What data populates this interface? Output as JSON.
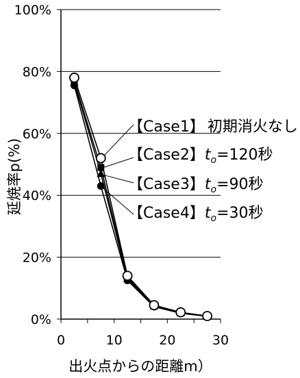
{
  "chart_data": {
    "type": "line",
    "xlabel": "出火点からの距離m）",
    "ylabel": "延焼率p(%)",
    "xlim": [
      0,
      30
    ],
    "ylim": [
      0,
      100
    ],
    "x_ticks": [
      "0",
      "10",
      "20",
      "30"
    ],
    "y_ticks": [
      "0%",
      "20%",
      "40%",
      "60%",
      "80%",
      "100%"
    ],
    "grid": "horizontal",
    "x": [
      2.5,
      7.5,
      12.5,
      17.5,
      22.5,
      27.5
    ],
    "series": [
      {
        "name": "【Case1】初期消火なし",
        "values": [
          78,
          52,
          14,
          4.5,
          2.2,
          1.0
        ],
        "marker": "open-circle"
      },
      {
        "name": "【Case2】to=120秒",
        "values": [
          77,
          49,
          13.5,
          4.3,
          2.1,
          1.0
        ],
        "marker": "filled-square"
      },
      {
        "name": "【Case3】to=90秒",
        "values": [
          76.5,
          47,
          13,
          4.2,
          2.0,
          0.9
        ],
        "marker": "filled-triangle"
      },
      {
        "name": "【Case4】to=30秒",
        "values": [
          75.5,
          43,
          12.5,
          4.0,
          1.9,
          0.9
        ],
        "marker": "filled-circle"
      }
    ],
    "annotations": [
      {
        "case": "【Case1】",
        "text": "初期消火なし"
      },
      {
        "case": "【Case2】",
        "t": "t",
        "sub": "o",
        "text": "=120秒"
      },
      {
        "case": "【Case3】",
        "t": "t",
        "sub": "o",
        "text": "=90秒"
      },
      {
        "case": "【Case4】",
        "t": "t",
        "sub": "o",
        "text": "=30秒"
      }
    ]
  }
}
